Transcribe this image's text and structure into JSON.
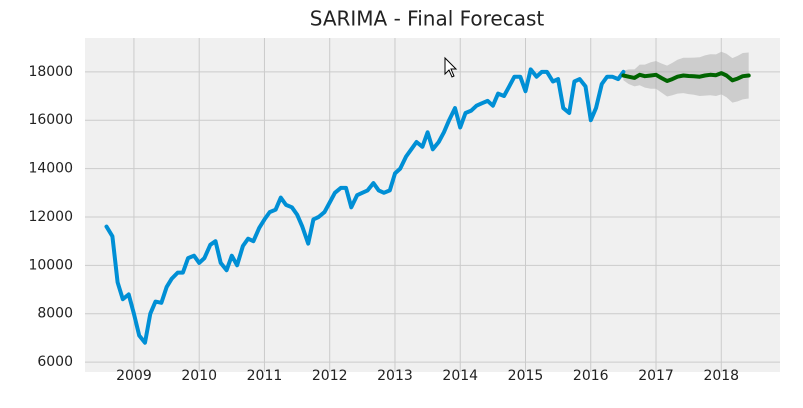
{
  "chart_data": {
    "type": "line",
    "title": "SARIMA - Final Forecast",
    "xlim": [
      2008.25,
      2018.9
    ],
    "ylim": [
      5590,
      19400
    ],
    "xticks": [
      2009,
      2010,
      2011,
      2012,
      2013,
      2014,
      2015,
      2016,
      2017,
      2018
    ],
    "yticks": [
      6000,
      8000,
      10000,
      12000,
      14000,
      16000,
      18000
    ],
    "grid": true,
    "series": [
      {
        "color": "#008fd5",
        "x": [
          2008.58,
          2008.67,
          2008.75,
          2008.83,
          2008.92,
          2009.0,
          2009.08,
          2009.17,
          2009.25,
          2009.33,
          2009.42,
          2009.5,
          2009.58,
          2009.67,
          2009.75,
          2009.83,
          2009.92,
          2010.0,
          2010.08,
          2010.17,
          2010.25,
          2010.33,
          2010.42,
          2010.5,
          2010.58,
          2010.67,
          2010.75,
          2010.83,
          2010.92,
          2011.0,
          2011.08,
          2011.17,
          2011.25,
          2011.33,
          2011.42,
          2011.5,
          2011.58,
          2011.67,
          2011.75,
          2011.83,
          2011.92,
          2012.0,
          2012.08,
          2012.17,
          2012.25,
          2012.33,
          2012.42,
          2012.5,
          2012.58,
          2012.67,
          2012.75,
          2012.83,
          2012.92,
          2013.0,
          2013.08,
          2013.17,
          2013.25,
          2013.33,
          2013.42,
          2013.5,
          2013.58,
          2013.67,
          2013.75,
          2013.83,
          2013.92,
          2014.0,
          2014.08,
          2014.17,
          2014.25,
          2014.33,
          2014.42,
          2014.5,
          2014.58,
          2014.67,
          2014.75,
          2014.83,
          2014.92,
          2015.0,
          2015.08,
          2015.17,
          2015.25,
          2015.33,
          2015.42,
          2015.5,
          2015.58,
          2015.67,
          2015.75,
          2015.83,
          2015.92,
          2016.0,
          2016.08,
          2016.17,
          2016.25,
          2016.33,
          2016.42,
          2016.5
        ],
        "values": [
          11600,
          11200,
          9300,
          8600,
          8800,
          8000,
          7100,
          6800,
          8000,
          8500,
          8450,
          9100,
          9450,
          9700,
          9700,
          10300,
          10400,
          10100,
          10300,
          10850,
          11000,
          10100,
          9800,
          10400,
          10000,
          10800,
          11100,
          11000,
          11550,
          11900,
          12200,
          12300,
          12800,
          12500,
          12400,
          12100,
          11600,
          10900,
          11900,
          12000,
          12200,
          12600,
          13000,
          13200,
          13200,
          12400,
          12900,
          13000,
          13100,
          13400,
          13100,
          13000,
          13100,
          13800,
          14000,
          14500,
          14800,
          15100,
          14900,
          15500,
          14800,
          15100,
          15500,
          16000,
          16500,
          15700,
          16300,
          16400,
          16600,
          16700,
          16800,
          16600,
          17100,
          17000,
          17400,
          17800,
          17800,
          17200,
          18100,
          17800,
          18000,
          18000,
          17600,
          17700,
          16500,
          16300,
          17600,
          17700,
          17400,
          16000,
          16500,
          17500,
          17800,
          17800,
          17700,
          18000
        ]
      },
      {
        "color": "#006400",
        "x": [
          2016.5,
          2016.58,
          2016.67,
          2016.75,
          2016.83,
          2016.92,
          2017.0,
          2017.08,
          2017.17,
          2017.25,
          2017.33,
          2017.42,
          2017.5,
          2017.58,
          2017.67,
          2017.75,
          2017.83,
          2017.92,
          2018.0,
          2018.08,
          2018.17,
          2018.25,
          2018.33,
          2018.42
        ],
        "values": [
          17850,
          17800,
          17750,
          17880,
          17820,
          17850,
          17880,
          17750,
          17620,
          17700,
          17800,
          17850,
          17830,
          17820,
          17800,
          17850,
          17880,
          17860,
          17950,
          17850,
          17650,
          17720,
          17820,
          17850
        ]
      }
    ],
    "band": {
      "color": "#b0b0b0",
      "x": [
        2016.5,
        2016.58,
        2016.67,
        2016.75,
        2016.83,
        2016.92,
        2017.0,
        2017.08,
        2017.17,
        2017.25,
        2017.33,
        2017.42,
        2017.5,
        2017.58,
        2017.67,
        2017.75,
        2017.83,
        2017.92,
        2018.0,
        2018.08,
        2018.17,
        2018.25,
        2018.33,
        2018.42
      ],
      "lower": [
        17650,
        17500,
        17400,
        17450,
        17350,
        17300,
        17300,
        17150,
        16980,
        17030,
        17100,
        17120,
        17080,
        17050,
        17000,
        17020,
        17030,
        17000,
        17070,
        16950,
        16730,
        16780,
        16860,
        16900
      ],
      "upper": [
        18050,
        18100,
        18100,
        18300,
        18300,
        18400,
        18450,
        18350,
        18260,
        18370,
        18500,
        18580,
        18580,
        18590,
        18600,
        18680,
        18730,
        18720,
        18830,
        18750,
        18570,
        18660,
        18780,
        18800
      ]
    }
  }
}
